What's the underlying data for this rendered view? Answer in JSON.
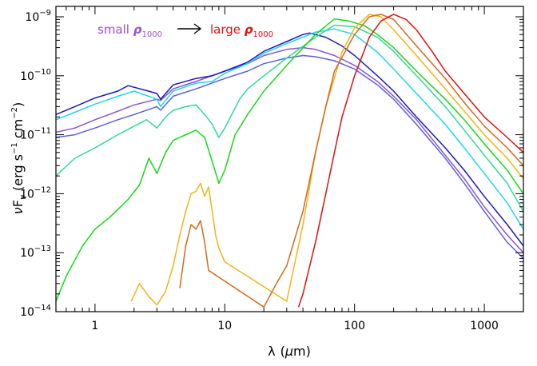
{
  "chart_data": {
    "type": "line",
    "x_scale": "log",
    "y_scale": "log",
    "xlim": [
      0.5,
      2000
    ],
    "ylim": [
      1e-14,
      1.5e-09
    ],
    "xlabel": {
      "base": "λ",
      "unit_open": "(",
      "mu": "μ",
      "unit_rest": "m)"
    },
    "ylabel": {
      "nu": "ν",
      "F": "F",
      "sub": "ν",
      "units": "(erg s",
      "exp1": "−1",
      "units2": " cm",
      "exp2": "−2",
      "close": ")"
    },
    "x_tick_labels": [
      "1",
      "10",
      "100",
      "1000"
    ],
    "x_ticks": [
      1,
      10,
      100,
      1000
    ],
    "y_ticks": [
      -14,
      -13,
      -12,
      -11,
      -10,
      -9
    ],
    "y_tick_base": "10",
    "y_tick_exponents": [
      "−14",
      "−13",
      "−12",
      "−11",
      "−10",
      "−9"
    ],
    "legend": {
      "left_text": "small ",
      "left_symbol": "ρ",
      "left_sub": "1000",
      "right_text": "large ",
      "right_symbol": "ρ",
      "right_sub": "1000",
      "left_color": "#9b4fd6",
      "right_color": "#e01010"
    },
    "series": [
      {
        "color": "#8a55d0",
        "points": [
          [
            0.5,
            1.1e-11
          ],
          [
            0.7,
            1.3e-11
          ],
          [
            1,
            1.8e-11
          ],
          [
            1.5,
            2.5e-11
          ],
          [
            2,
            3.2e-11
          ],
          [
            3,
            4e-11
          ],
          [
            3.2,
            3.8e-11
          ],
          [
            4,
            6e-11
          ],
          [
            6,
            8e-11
          ],
          [
            10,
            1.2e-10
          ],
          [
            15,
            1.6e-10
          ],
          [
            20,
            2.2e-10
          ],
          [
            30,
            2.8e-10
          ],
          [
            40,
            3e-10
          ],
          [
            50,
            2.8e-10
          ],
          [
            70,
            2.2e-10
          ],
          [
            100,
            1.5e-10
          ],
          [
            150,
            8e-11
          ],
          [
            200,
            4.5e-11
          ],
          [
            300,
            1.8e-11
          ],
          [
            500,
            4.5e-12
          ],
          [
            700,
            1.8e-12
          ],
          [
            1000,
            6e-13
          ],
          [
            1500,
            2e-13
          ],
          [
            2000,
            1e-13
          ]
        ]
      },
      {
        "color": "#5a62d6",
        "points": [
          [
            0.5,
            9e-12
          ],
          [
            0.7,
            1e-11
          ],
          [
            1,
            1.3e-11
          ],
          [
            1.5,
            1.8e-11
          ],
          [
            2,
            2.2e-11
          ],
          [
            3,
            3e-11
          ],
          [
            3.2,
            2.6e-11
          ],
          [
            4,
            4.5e-11
          ],
          [
            6,
            6e-11
          ],
          [
            10,
            9e-11
          ],
          [
            15,
            1.2e-10
          ],
          [
            20,
            1.6e-10
          ],
          [
            30,
            2e-10
          ],
          [
            40,
            2.2e-10
          ],
          [
            50,
            2.1e-10
          ],
          [
            70,
            1.8e-10
          ],
          [
            100,
            1.3e-10
          ],
          [
            150,
            7e-11
          ],
          [
            200,
            4e-11
          ],
          [
            300,
            1.5e-11
          ],
          [
            500,
            4e-12
          ],
          [
            700,
            1.5e-12
          ],
          [
            1000,
            5e-13
          ],
          [
            1500,
            1.5e-13
          ],
          [
            2000,
            8e-14
          ]
        ]
      },
      {
        "color": "#1a1ab8",
        "points": [
          [
            0.5,
            2.2e-11
          ],
          [
            0.7,
            3e-11
          ],
          [
            1,
            4.2e-11
          ],
          [
            1.5,
            5.5e-11
          ],
          [
            1.8,
            6.8e-11
          ],
          [
            2.5,
            5.6e-11
          ],
          [
            3,
            5e-11
          ],
          [
            3.2,
            4e-11
          ],
          [
            4,
            7e-11
          ],
          [
            6,
            9e-11
          ],
          [
            8,
            1e-10
          ],
          [
            10,
            1.2e-10
          ],
          [
            15,
            1.7e-10
          ],
          [
            20,
            2.6e-10
          ],
          [
            30,
            3.8e-10
          ],
          [
            40,
            5e-10
          ],
          [
            45,
            5.3e-10
          ],
          [
            60,
            4.5e-10
          ],
          [
            80,
            3.2e-10
          ],
          [
            100,
            2.2e-10
          ],
          [
            150,
            1e-10
          ],
          [
            200,
            5.5e-11
          ],
          [
            300,
            2e-11
          ],
          [
            500,
            6e-12
          ],
          [
            700,
            2.5e-12
          ],
          [
            1000,
            9e-13
          ],
          [
            1500,
            3e-13
          ],
          [
            2000,
            1.3e-13
          ]
        ]
      },
      {
        "color": "#22d5ee",
        "points": [
          [
            0.5,
            1.8e-11
          ],
          [
            0.7,
            2.4e-11
          ],
          [
            1,
            3.3e-11
          ],
          [
            1.5,
            4.5e-11
          ],
          [
            2,
            5.5e-11
          ],
          [
            3,
            4e-11
          ],
          [
            3.2,
            3e-11
          ],
          [
            4,
            5.5e-11
          ],
          [
            6,
            7.5e-11
          ],
          [
            8,
            8e-11
          ],
          [
            10,
            1.1e-10
          ],
          [
            15,
            1.6e-10
          ],
          [
            20,
            2.4e-10
          ],
          [
            30,
            3.5e-10
          ],
          [
            50,
            5.5e-10
          ],
          [
            70,
            6.2e-10
          ],
          [
            100,
            5e-10
          ],
          [
            150,
            2.5e-10
          ],
          [
            200,
            1.3e-10
          ],
          [
            300,
            5e-11
          ],
          [
            500,
            1.5e-11
          ],
          [
            700,
            6e-12
          ],
          [
            1000,
            2.2e-12
          ],
          [
            1500,
            7e-13
          ],
          [
            2000,
            2.5e-13
          ]
        ]
      },
      {
        "color": "#30d898",
        "points": [
          [
            0.5,
            2e-12
          ],
          [
            0.7,
            4e-12
          ],
          [
            1,
            6e-12
          ],
          [
            1.5,
            1e-11
          ],
          [
            2,
            1.4e-11
          ],
          [
            2.5,
            1.8e-11
          ],
          [
            3,
            1.3e-11
          ],
          [
            3.5,
            2e-11
          ],
          [
            4,
            2.6e-11
          ],
          [
            5,
            3e-11
          ],
          [
            6,
            3.2e-11
          ],
          [
            7,
            2.2e-11
          ],
          [
            8,
            1.5e-11
          ],
          [
            9,
            9e-12
          ],
          [
            10,
            1.3e-11
          ],
          [
            13,
            4e-11
          ],
          [
            15,
            6e-11
          ],
          [
            20,
            1e-10
          ],
          [
            30,
            2e-10
          ],
          [
            50,
            4.5e-10
          ],
          [
            70,
            7.2e-10
          ],
          [
            100,
            6.8e-10
          ],
          [
            150,
            4.5e-10
          ],
          [
            200,
            2.6e-10
          ],
          [
            300,
            1e-10
          ],
          [
            500,
            3e-11
          ],
          [
            700,
            1.2e-11
          ],
          [
            1000,
            4.5e-12
          ],
          [
            1500,
            1.5e-12
          ],
          [
            2000,
            5e-13
          ]
        ]
      },
      {
        "color": "#18d818",
        "points": [
          [
            0.5,
            1.5e-14
          ],
          [
            0.6,
            4e-14
          ],
          [
            0.8,
            1.3e-13
          ],
          [
            1,
            2.5e-13
          ],
          [
            1.3,
            4e-13
          ],
          [
            1.8,
            8e-13
          ],
          [
            2.2,
            1.4e-12
          ],
          [
            2.6,
            4e-12
          ],
          [
            3,
            2.2e-12
          ],
          [
            3.5,
            5e-12
          ],
          [
            4,
            8e-12
          ],
          [
            5,
            1e-11
          ],
          [
            6,
            1.2e-11
          ],
          [
            7,
            9e-12
          ],
          [
            8,
            3.5e-12
          ],
          [
            9,
            1.5e-12
          ],
          [
            10,
            2.5e-12
          ],
          [
            12,
            1e-11
          ],
          [
            15,
            2.2e-11
          ],
          [
            20,
            5.5e-11
          ],
          [
            30,
            1.5e-10
          ],
          [
            50,
            5e-10
          ],
          [
            70,
            9.2e-10
          ],
          [
            90,
            8.5e-10
          ],
          [
            120,
            7e-10
          ],
          [
            150,
            5e-10
          ],
          [
            200,
            3e-10
          ],
          [
            300,
            1.2e-10
          ],
          [
            500,
            4e-11
          ],
          [
            700,
            1.8e-11
          ],
          [
            1000,
            7e-12
          ],
          [
            1500,
            2.5e-12
          ],
          [
            2000,
            1e-12
          ]
        ]
      },
      {
        "color": "#f0b418",
        "points": [
          [
            1.9,
            1.5e-14
          ],
          [
            2.2,
            3e-14
          ],
          [
            2.6,
            1.8e-14
          ],
          [
            3,
            1.3e-14
          ],
          [
            3.5,
            2.2e-14
          ],
          [
            4,
            6e-14
          ],
          [
            4.5,
            2e-13
          ],
          [
            5,
            5e-13
          ],
          [
            5.5,
            1e-12
          ],
          [
            6,
            1.1e-12
          ],
          [
            6.5,
            1.5e-12
          ],
          [
            7,
            9e-13
          ],
          [
            7.5,
            1.3e-12
          ],
          [
            8,
            5e-13
          ],
          [
            8.5,
            2e-13
          ],
          [
            9,
            1.2e-13
          ],
          [
            10,
            7e-14
          ],
          [
            30,
            1.5e-14
          ],
          [
            40,
            3e-13
          ],
          [
            50,
            5e-12
          ],
          [
            60,
            3e-11
          ],
          [
            80,
            2.5e-10
          ],
          [
            100,
            6.5e-10
          ],
          [
            130,
            1.1e-09
          ],
          [
            160,
            1e-09
          ],
          [
            200,
            6e-10
          ],
          [
            300,
            2.2e-10
          ],
          [
            500,
            6e-11
          ],
          [
            700,
            2.5e-11
          ],
          [
            1000,
            1e-11
          ],
          [
            1500,
            4e-12
          ],
          [
            2000,
            1.8e-12
          ]
        ]
      },
      {
        "color": "#d2691e",
        "points": [
          [
            4.5,
            2.5e-14
          ],
          [
            5,
            1.3e-13
          ],
          [
            5.5,
            3e-13
          ],
          [
            6,
            2.5e-13
          ],
          [
            6.5,
            3.5e-13
          ],
          [
            7,
            1.5e-13
          ],
          [
            7.5,
            5e-14
          ],
          [
            20,
            1.2e-14
          ],
          [
            25,
            3e-14
          ],
          [
            30,
            6e-14
          ],
          [
            40,
            5e-13
          ],
          [
            50,
            5e-12
          ],
          [
            60,
            3e-11
          ],
          [
            70,
            1.2e-10
          ],
          [
            100,
            5e-10
          ],
          [
            130,
            1e-09
          ],
          [
            160,
            1.1e-09
          ],
          [
            200,
            9e-10
          ],
          [
            300,
            3.2e-10
          ],
          [
            500,
            9e-11
          ],
          [
            700,
            3.5e-11
          ],
          [
            1000,
            1.4e-11
          ],
          [
            1500,
            6e-12
          ],
          [
            2000,
            3e-12
          ]
        ]
      },
      {
        "color": "#e01010",
        "points": [
          [
            37,
            1.2e-14
          ],
          [
            40,
            2e-14
          ],
          [
            50,
            1.5e-13
          ],
          [
            60,
            1e-12
          ],
          [
            70,
            5e-12
          ],
          [
            80,
            2e-11
          ],
          [
            100,
            1e-10
          ],
          [
            130,
            4.5e-10
          ],
          [
            160,
            8.5e-10
          ],
          [
            200,
            1.1e-09
          ],
          [
            250,
            9e-10
          ],
          [
            300,
            6e-10
          ],
          [
            400,
            2.5e-10
          ],
          [
            500,
            1.2e-10
          ],
          [
            700,
            5e-11
          ],
          [
            1000,
            2e-11
          ],
          [
            1500,
            9e-12
          ],
          [
            2000,
            5e-12
          ]
        ]
      }
    ]
  }
}
